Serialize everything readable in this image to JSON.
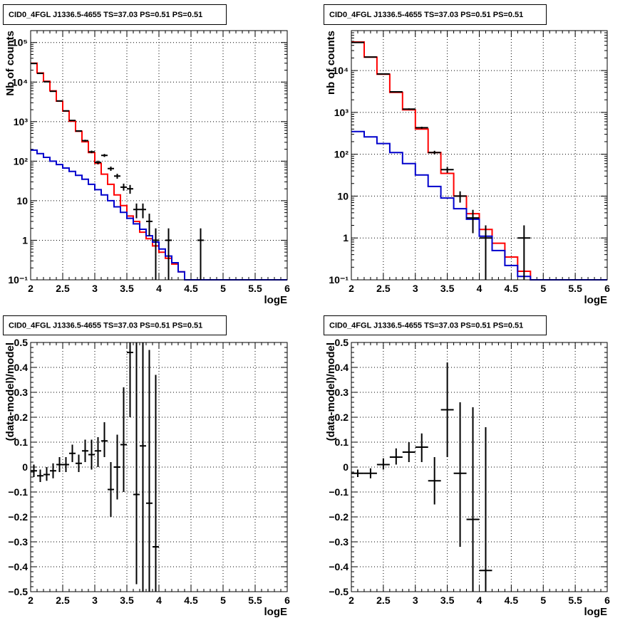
{
  "chart_data": [
    {
      "type": "line",
      "title": "CID0_4FGL J1336.5-4655 TS=37.03 PS=0.51 PS=0.51",
      "xlabel": "logE",
      "ylabel": "Nb of counts",
      "xlim": [
        2,
        6
      ],
      "ylim": [
        0.1,
        200000
      ],
      "ylog": true,
      "grid": true,
      "x_ticks": [
        "2",
        "2.5",
        "3",
        "3.5",
        "4",
        "4.5",
        "5",
        "5.5",
        "6"
      ],
      "y_ticks": [
        {
          "v": 0.1,
          "label": "10⁻¹"
        },
        {
          "v": 1,
          "label": "1"
        },
        {
          "v": 10,
          "label": "10"
        },
        {
          "v": 100,
          "label": "10²"
        },
        {
          "v": 1000,
          "label": "10³"
        },
        {
          "v": 10000,
          "label": "10⁴"
        },
        {
          "v": 100000,
          "label": "10⁵"
        }
      ],
      "edges": [
        2.0,
        2.1,
        2.2,
        2.3,
        2.4,
        2.5,
        2.6,
        2.7,
        2.8,
        2.9,
        3.0,
        3.1,
        3.2,
        3.3,
        3.4,
        3.5,
        3.6,
        3.7,
        3.8,
        3.9,
        4.0,
        4.1,
        4.2,
        4.3,
        4.4,
        4.5,
        4.6,
        4.7,
        4.8,
        4.9,
        5.0,
        5.1,
        5.2,
        5.3,
        5.4,
        5.5,
        5.6,
        5.7,
        5.8,
        5.9,
        6.0
      ],
      "series": [
        {
          "color": "#ff0000",
          "kind": "step",
          "values": [
            30000,
            17000,
            10500,
            6000,
            3300,
            1850,
            1020,
            570,
            310,
            165,
            88,
            47,
            26,
            14,
            7.5,
            4.1,
            3.0,
            1.6,
            1.1,
            0.72,
            0.5,
            0.35,
            0.25,
            0.16,
            0.1,
            0.1,
            0.1,
            0.1,
            0.1,
            0.1,
            0.1,
            0.1,
            0.1,
            0.1,
            0.1,
            0.1,
            0.1,
            0.1,
            0.1,
            0.1
          ]
        },
        {
          "color": "#0000cc",
          "kind": "step",
          "values": [
            190,
            155,
            125,
            100,
            82,
            67,
            55,
            44,
            35,
            26,
            19,
            14,
            10,
            7.0,
            5.1,
            3.6,
            2.6,
            1.9,
            1.3,
            0.9,
            0.6,
            0.4,
            0.27,
            0.16,
            0.1,
            0.1,
            0.1,
            0.1,
            0.1,
            0.1,
            0.1,
            0.1,
            0.1,
            0.1,
            0.1,
            0.1,
            0.1,
            0.1,
            0.1,
            0.1
          ]
        },
        {
          "color": "#000000",
          "kind": "points",
          "xerr": 0.05,
          "points": [
            {
              "x": 2.05,
              "y": 29500,
              "lo": 29300,
              "hi": 29700
            },
            {
              "x": 2.15,
              "y": 16600,
              "lo": 16400,
              "hi": 16800
            },
            {
              "x": 2.25,
              "y": 10200,
              "lo": 10050,
              "hi": 10350
            },
            {
              "x": 2.35,
              "y": 5850,
              "lo": 5750,
              "hi": 5950
            },
            {
              "x": 2.45,
              "y": 3330,
              "lo": 3270,
              "hi": 3390
            },
            {
              "x": 2.55,
              "y": 1870,
              "lo": 1830,
              "hi": 1910
            },
            {
              "x": 2.65,
              "y": 1070,
              "lo": 1040,
              "hi": 1100
            },
            {
              "x": 2.75,
              "y": 580,
              "lo": 556,
              "hi": 604
            },
            {
              "x": 2.85,
              "y": 330,
              "lo": 312,
              "hi": 348
            },
            {
              "x": 2.95,
              "y": 172,
              "lo": 159,
              "hi": 185
            },
            {
              "x": 3.05,
              "y": 93,
              "lo": 83,
              "hi": 103
            },
            {
              "x": 3.15,
              "y": 140,
              "lo": 128,
              "hi": 152
            },
            {
              "x": 3.25,
              "y": 65,
              "lo": 57,
              "hi": 73
            },
            {
              "x": 3.35,
              "y": 42,
              "lo": 36,
              "hi": 48
            },
            {
              "x": 3.45,
              "y": 22,
              "lo": 18,
              "hi": 27
            },
            {
              "x": 3.55,
              "y": 20,
              "lo": 15,
              "hi": 25
            },
            {
              "x": 3.65,
              "y": 6,
              "lo": 3.6,
              "hi": 8.5
            },
            {
              "x": 3.75,
              "y": 6,
              "lo": 3.6,
              "hi": 8.5
            },
            {
              "x": 3.85,
              "y": 3,
              "lo": 1.3,
              "hi": 4.7
            },
            {
              "x": 3.95,
              "y": 1,
              "lo": 0.1,
              "hi": 2.0
            },
            {
              "x": 4.15,
              "y": 1,
              "lo": 0.1,
              "hi": 2.0
            },
            {
              "x": 4.65,
              "y": 1,
              "lo": 0.1,
              "hi": 2.0
            }
          ]
        }
      ]
    },
    {
      "type": "line",
      "title": "CID0_4FGL J1336.5-4655 TS=37.03 PS=0.51 PS=0.51",
      "xlabel": "logE",
      "ylabel": "nb of counts",
      "xlim": [
        2,
        6
      ],
      "ylim": [
        0.1,
        90000
      ],
      "ylog": true,
      "grid": true,
      "x_ticks": [
        "2",
        "2.5",
        "3",
        "3.5",
        "4",
        "4.5",
        "5",
        "5.5",
        "6"
      ],
      "y_ticks": [
        {
          "v": 0.1,
          "label": "10⁻¹"
        },
        {
          "v": 1,
          "label": "1"
        },
        {
          "v": 10,
          "label": "10"
        },
        {
          "v": 100,
          "label": "10²"
        },
        {
          "v": 1000,
          "label": "10³"
        },
        {
          "v": 10000,
          "label": "10⁴"
        }
      ],
      "edges": [
        2.0,
        2.2,
        2.4,
        2.6,
        2.8,
        3.0,
        3.2,
        3.4,
        3.6,
        3.8,
        4.0,
        4.2,
        4.4,
        4.6,
        4.8,
        5.0,
        5.2,
        5.4,
        5.6,
        5.8,
        6.0
      ],
      "series": [
        {
          "color": "#ff0000",
          "kind": "step",
          "values": [
            48000,
            21000,
            8200,
            3000,
            1150,
            400,
            110,
            35,
            10,
            3.8,
            1.6,
            0.75,
            0.35,
            0.16,
            0.1,
            0.1,
            0.1,
            0.1,
            0.1,
            0.1
          ]
        },
        {
          "color": "#0000cc",
          "kind": "step",
          "values": [
            350,
            260,
            180,
            110,
            60,
            32,
            17,
            9,
            5.0,
            2.8,
            1.1,
            0.5,
            0.22,
            0.12,
            0.1,
            0.1,
            0.1,
            0.1,
            0.1,
            0.1
          ]
        },
        {
          "color": "#000000",
          "kind": "points",
          "xerr": 0.1,
          "points": [
            {
              "x": 2.1,
              "y": 47000,
              "lo": 46700,
              "hi": 47300
            },
            {
              "x": 2.3,
              "y": 21000,
              "lo": 20800,
              "hi": 21200
            },
            {
              "x": 2.5,
              "y": 8300,
              "lo": 8150,
              "hi": 8450
            },
            {
              "x": 2.7,
              "y": 3100,
              "lo": 3020,
              "hi": 3180
            },
            {
              "x": 2.9,
              "y": 1200,
              "lo": 1150,
              "hi": 1250
            },
            {
              "x": 3.1,
              "y": 430,
              "lo": 405,
              "hi": 455
            },
            {
              "x": 3.3,
              "y": 110,
              "lo": 99,
              "hi": 121
            },
            {
              "x": 3.5,
              "y": 43,
              "lo": 36,
              "hi": 50
            },
            {
              "x": 3.7,
              "y": 10,
              "lo": 7,
              "hi": 13
            },
            {
              "x": 3.9,
              "y": 3,
              "lo": 1.3,
              "hi": 4.7
            },
            {
              "x": 4.1,
              "y": 1,
              "lo": 0.1,
              "hi": 2.0
            },
            {
              "x": 4.7,
              "y": 1,
              "lo": 0.1,
              "hi": 2.0
            }
          ]
        }
      ]
    },
    {
      "type": "scatter",
      "title": "CID0_4FGL J1336.5-4655 TS=37.03 PS=0.51 PS=0.51",
      "xlabel": "logE",
      "ylabel": "(data-model)/model",
      "xlim": [
        2,
        6
      ],
      "ylim": [
        -0.5,
        0.5
      ],
      "ylog": false,
      "grid": true,
      "x_ticks": [
        "2",
        "2.5",
        "3",
        "3.5",
        "4",
        "4.5",
        "5",
        "5.5",
        "6"
      ],
      "y_ticks": [
        {
          "v": -0.5,
          "label": "−0.5"
        },
        {
          "v": -0.4,
          "label": "−0.4"
        },
        {
          "v": -0.3,
          "label": "−0.3"
        },
        {
          "v": -0.2,
          "label": "−0.2"
        },
        {
          "v": -0.1,
          "label": "−0.1"
        },
        {
          "v": 0,
          "label": "0"
        },
        {
          "v": 0.1,
          "label": "0.1"
        },
        {
          "v": 0.2,
          "label": "0.2"
        },
        {
          "v": 0.3,
          "label": "0.3"
        },
        {
          "v": 0.4,
          "label": "0.4"
        },
        {
          "v": 0.5,
          "label": "0.5"
        }
      ],
      "series": [
        {
          "color": "#000000",
          "kind": "points",
          "xerr": 0.05,
          "points": [
            {
              "x": 2.05,
              "y": -0.015,
              "lo": -0.04,
              "hi": 0.01
            },
            {
              "x": 2.15,
              "y": -0.035,
              "lo": -0.06,
              "hi": -0.01
            },
            {
              "x": 2.25,
              "y": -0.03,
              "lo": -0.055,
              "hi": 0.0
            },
            {
              "x": 2.35,
              "y": -0.015,
              "lo": -0.045,
              "hi": 0.015
            },
            {
              "x": 2.45,
              "y": 0.01,
              "lo": -0.02,
              "hi": 0.04
            },
            {
              "x": 2.55,
              "y": 0.01,
              "lo": -0.02,
              "hi": 0.04
            },
            {
              "x": 2.65,
              "y": 0.055,
              "lo": 0.02,
              "hi": 0.09
            },
            {
              "x": 2.75,
              "y": 0.015,
              "lo": -0.02,
              "hi": 0.05
            },
            {
              "x": 2.85,
              "y": 0.065,
              "lo": 0.02,
              "hi": 0.11
            },
            {
              "x": 2.95,
              "y": 0.05,
              "lo": -0.01,
              "hi": 0.11
            },
            {
              "x": 3.05,
              "y": 0.065,
              "lo": 0.0,
              "hi": 0.12
            },
            {
              "x": 3.15,
              "y": 0.105,
              "lo": 0.04,
              "hi": 0.18
            },
            {
              "x": 3.25,
              "y": -0.09,
              "lo": -0.2,
              "hi": 0.02
            },
            {
              "x": 3.35,
              "y": 0.0,
              "lo": -0.13,
              "hi": 0.13
            },
            {
              "x": 3.45,
              "y": 0.09,
              "lo": -0.1,
              "hi": 0.32
            },
            {
              "x": 3.55,
              "y": 0.46,
              "lo": 0.2,
              "hi": 0.5
            },
            {
              "x": 3.65,
              "y": -0.11,
              "lo": -0.47,
              "hi": 0.5
            },
            {
              "x": 3.75,
              "y": 0.085,
              "lo": -0.5,
              "hi": 0.5
            },
            {
              "x": 3.85,
              "y": -0.145,
              "lo": -0.5,
              "hi": 0.47
            },
            {
              "x": 3.95,
              "y": -0.32,
              "lo": -0.5,
              "hi": 0.37
            }
          ]
        }
      ]
    },
    {
      "type": "scatter",
      "title": "CID0_4FGL J1336.5-4655 TS=37.03 PS=0.51 PS=0.51",
      "xlabel": "logE",
      "ylabel": "(data-model)/model",
      "xlim": [
        2,
        6
      ],
      "ylim": [
        -0.5,
        0.5
      ],
      "ylog": false,
      "grid": true,
      "x_ticks": [
        "2",
        "2.5",
        "3",
        "3.5",
        "4",
        "4.5",
        "5",
        "5.5",
        "6"
      ],
      "y_ticks": [
        {
          "v": -0.5,
          "label": "−0.5"
        },
        {
          "v": -0.4,
          "label": "−0.4"
        },
        {
          "v": -0.3,
          "label": "−0.3"
        },
        {
          "v": -0.2,
          "label": "−0.2"
        },
        {
          "v": -0.1,
          "label": "−0.1"
        },
        {
          "v": 0,
          "label": "0"
        },
        {
          "v": 0.1,
          "label": "0.1"
        },
        {
          "v": 0.2,
          "label": "0.2"
        },
        {
          "v": 0.3,
          "label": "0.3"
        },
        {
          "v": 0.4,
          "label": "0.4"
        },
        {
          "v": 0.5,
          "label": "0.5"
        }
      ],
      "series": [
        {
          "color": "#000000",
          "kind": "points",
          "xerr": 0.1,
          "points": [
            {
              "x": 2.1,
              "y": -0.025,
              "lo": -0.04,
              "hi": -0.01
            },
            {
              "x": 2.3,
              "y": -0.025,
              "lo": -0.045,
              "hi": -0.005
            },
            {
              "x": 2.5,
              "y": 0.01,
              "lo": -0.01,
              "hi": 0.035
            },
            {
              "x": 2.7,
              "y": 0.04,
              "lo": 0.01,
              "hi": 0.075
            },
            {
              "x": 2.9,
              "y": 0.06,
              "lo": 0.02,
              "hi": 0.1
            },
            {
              "x": 3.1,
              "y": 0.08,
              "lo": 0.02,
              "hi": 0.135
            },
            {
              "x": 3.3,
              "y": -0.055,
              "lo": -0.15,
              "hi": 0.04
            },
            {
              "x": 3.5,
              "y": 0.23,
              "lo": 0.04,
              "hi": 0.42
            },
            {
              "x": 3.7,
              "y": -0.025,
              "lo": -0.32,
              "hi": 0.26
            },
            {
              "x": 3.9,
              "y": -0.21,
              "lo": -0.5,
              "hi": 0.24
            },
            {
              "x": 4.1,
              "y": -0.415,
              "lo": -0.5,
              "hi": 0.16
            }
          ]
        }
      ]
    }
  ]
}
